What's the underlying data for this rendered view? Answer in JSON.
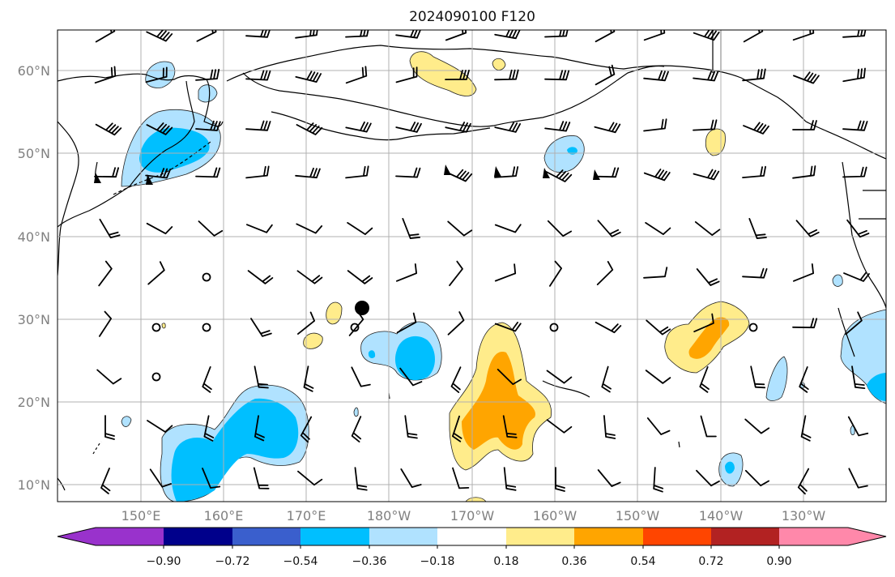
{
  "title": "2024090100 F120",
  "lat_labels": [
    "60°N",
    "50°N",
    "40°N",
    "30°N",
    "20°N",
    "10°N"
  ],
  "lon_labels": [
    "150°E",
    "160°E",
    "170°E",
    "180°W",
    "170°W",
    "160°W",
    "150°W",
    "140°W",
    "130°W"
  ],
  "colorbar": {
    "tick_labels": [
      "−0.90",
      "−0.72",
      "−0.54",
      "−0.36",
      "−0.18",
      "0.18",
      "0.36",
      "0.54",
      "0.72",
      "0.90"
    ],
    "colors": [
      "#9932CC",
      "#00008B",
      "#3A5FCD",
      "#00BFFF",
      "#B0E2FF",
      "#FFFFFF",
      "#FFEC8B",
      "#FFA500",
      "#FF4500",
      "#B22222",
      "#FF88AA"
    ]
  }
}
